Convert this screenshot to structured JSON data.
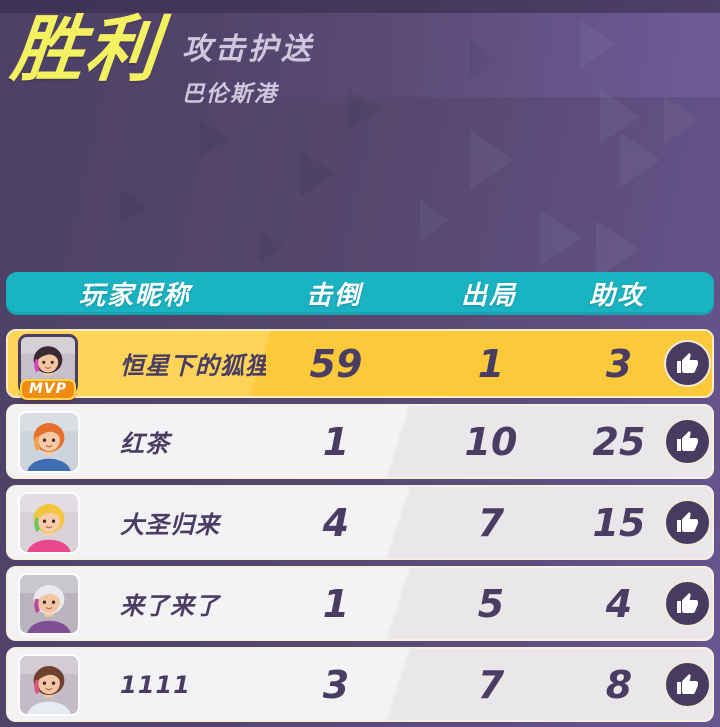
{
  "hero": {
    "title": "胜利",
    "mode": "攻击护送",
    "map": "巴伦斯港"
  },
  "colors": {
    "accent_teal": "#1ab3c2",
    "highlight_yellow": "#fcc93a",
    "badge_orange": "#f18c12",
    "text_purple": "#4a3d63",
    "title_yellow": "#f4f160",
    "background_purple": "#55476e"
  },
  "icons": {
    "like": "thumbs-up"
  },
  "table": {
    "columns": {
      "player": "玩家昵称",
      "knockdowns": "击倒",
      "eliminations": "出局",
      "assists": "助攻"
    },
    "mvp_label": "MVP",
    "rows": [
      {
        "name": "恒星下的狐狸",
        "knockdowns": "59",
        "eliminations": "1",
        "assists": "3",
        "mvp": true,
        "avatar": {
          "bg": "#c7bfc9",
          "hair": "#3a2a34",
          "skin": "#f2c6a0",
          "outfit": "#8a5fa8",
          "accent": "#d645b8"
        }
      },
      {
        "name": "红茶",
        "knockdowns": "1",
        "eliminations": "10",
        "assists": "25",
        "mvp": false,
        "avatar": {
          "bg": "#cdd3da",
          "hair": "#e4702b",
          "skin": "#f4c9a4",
          "outfit": "#3f6db3",
          "accent": "#f0a24a"
        }
      },
      {
        "name": "大圣归来",
        "knockdowns": "4",
        "eliminations": "7",
        "assists": "15",
        "mvp": false,
        "avatar": {
          "bg": "#d8d2d8",
          "hair": "#f2c53f",
          "skin": "#f6cda8",
          "outfit": "#e8478b",
          "accent": "#69c46a"
        }
      },
      {
        "name": "来了来了",
        "knockdowns": "1",
        "eliminations": "5",
        "assists": "4",
        "mvp": false,
        "avatar": {
          "bg": "#b9b3bd",
          "hair": "#ece8f0",
          "skin": "#f2c6a0",
          "outfit": "#7e5093",
          "accent": "#c0489a"
        }
      },
      {
        "name": "1111",
        "knockdowns": "3",
        "eliminations": "7",
        "assists": "8",
        "mvp": false,
        "avatar": {
          "bg": "#c3bcc6",
          "hair": "#6e4030",
          "skin": "#f2c6a0",
          "outfit": "#e8ecf2",
          "accent": "#d94f7e"
        }
      }
    ]
  }
}
